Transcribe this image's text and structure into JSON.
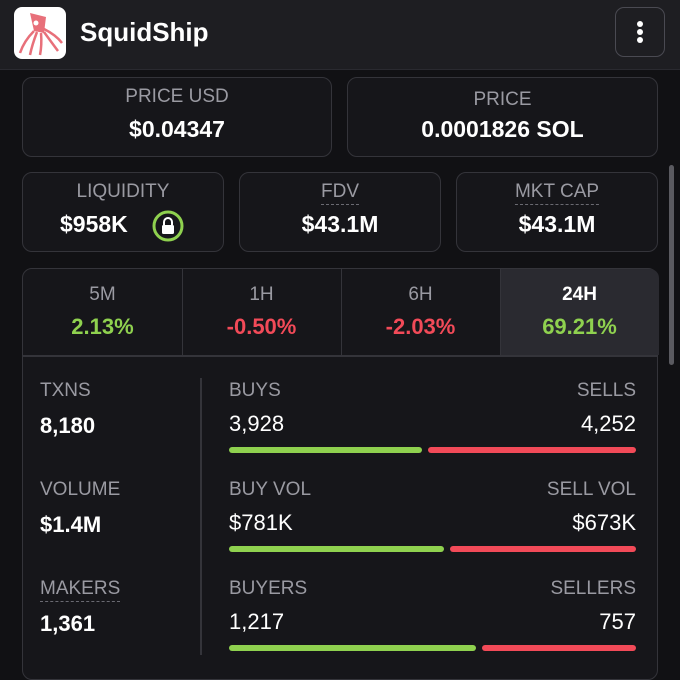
{
  "header": {
    "title": "SquidShip"
  },
  "price_usd": {
    "label": "PRICE USD",
    "value": "$0.04347"
  },
  "price": {
    "label": "PRICE",
    "value": "0.0001826 SOL"
  },
  "liquidity": {
    "label": "LIQUIDITY",
    "value": "$958K"
  },
  "fdv": {
    "label": "FDV",
    "value": "$43.1M"
  },
  "mkt_cap": {
    "label": "MKT CAP",
    "value": "$43.1M"
  },
  "tabs": [
    {
      "label": "5M",
      "change": "2.13%"
    },
    {
      "label": "1H",
      "change": "-0.50%"
    },
    {
      "label": "6H",
      "change": "-2.03%"
    },
    {
      "label": "24H",
      "change": "69.21%"
    }
  ],
  "stats": [
    {
      "label": "TXNS",
      "value": "8,180",
      "buy_label": "BUYS",
      "sell_label": "SELLS",
      "buy": {
        "value": 3928,
        "label": "3,928"
      },
      "sell": {
        "value": 4252,
        "label": "4,252"
      }
    },
    {
      "label": "VOLUME",
      "value": "$1.4M",
      "buy_label": "BUY VOL",
      "sell_label": "SELL VOL",
      "buy": {
        "value": 781000,
        "label": "$781K"
      },
      "sell": {
        "value": 673000,
        "label": "$673K"
      }
    },
    {
      "label": "MAKERS",
      "value": "1,361",
      "buy_label": "BUYERS",
      "sell_label": "SELLERS",
      "buy": {
        "value": 1217,
        "label": "1,217"
      },
      "sell": {
        "value": 757,
        "label": "757"
      }
    }
  ]
}
